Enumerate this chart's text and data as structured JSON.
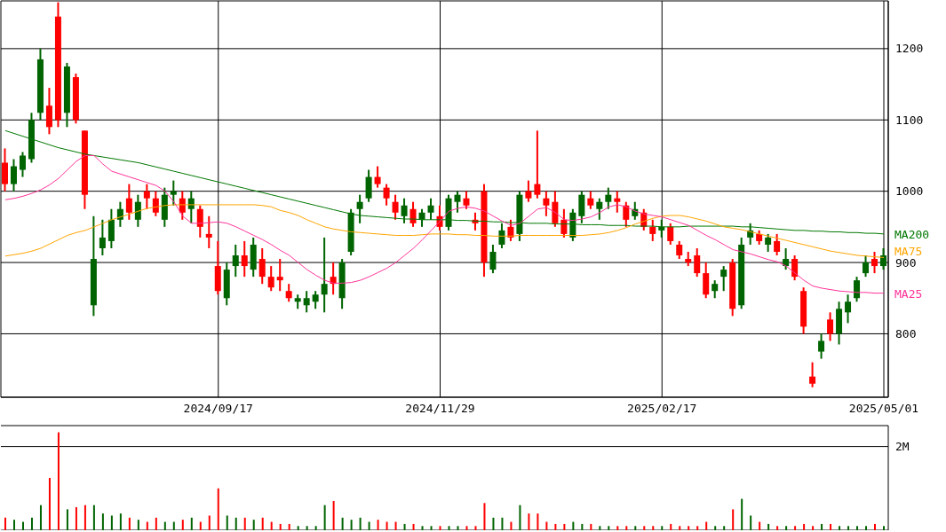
{
  "chart_data": [
    {
      "type": "candlestick",
      "categories": [
        null,
        null,
        null,
        null,
        null,
        null,
        null,
        null,
        null,
        null,
        null,
        null,
        null,
        null,
        null,
        null,
        null,
        null,
        null,
        null,
        null,
        null,
        null,
        null,
        "2024/09/17",
        null,
        null,
        null,
        null,
        null,
        null,
        null,
        null,
        null,
        null,
        null,
        null,
        null,
        null,
        null,
        null,
        null,
        null,
        null,
        null,
        null,
        null,
        null,
        null,
        "2024/11/29",
        null,
        null,
        null,
        null,
        null,
        null,
        null,
        null,
        null,
        null,
        null,
        null,
        null,
        null,
        null,
        null,
        null,
        null,
        null,
        null,
        null,
        null,
        null,
        null,
        "2025/02/17",
        null,
        null,
        null,
        null,
        null,
        null,
        null,
        null,
        null,
        null,
        null,
        null,
        null,
        null,
        null,
        null,
        null,
        null,
        null,
        null,
        null,
        null,
        null,
        null,
        "2025/05/01"
      ],
      "ohlc": [
        [
          1040,
          1060,
          1000,
          1010
        ],
        [
          1010,
          1045,
          1000,
          1035
        ],
        [
          1030,
          1055,
          1020,
          1050
        ],
        [
          1045,
          1110,
          1040,
          1100
        ],
        [
          1110,
          1200,
          1100,
          1185
        ],
        [
          1120,
          1145,
          1080,
          1090
        ],
        [
          1245,
          1265,
          1090,
          1100
        ],
        [
          1110,
          1180,
          1090,
          1175
        ],
        [
          1160,
          1165,
          1095,
          1100
        ],
        [
          1085,
          1085,
          975,
          995
        ],
        [
          840,
          965,
          825,
          905
        ],
        [
          920,
          960,
          910,
          935
        ],
        [
          930,
          975,
          920,
          960
        ],
        [
          960,
          985,
          950,
          975
        ],
        [
          990,
          1010,
          960,
          970
        ],
        [
          960,
          995,
          950,
          985
        ],
        [
          1000,
          1010,
          975,
          990
        ],
        [
          990,
          1000,
          965,
          970
        ],
        [
          960,
          1005,
          950,
          995
        ],
        [
          995,
          1015,
          980,
          1000
        ],
        [
          990,
          1000,
          960,
          970
        ],
        [
          975,
          1000,
          955,
          990
        ],
        [
          975,
          980,
          935,
          950
        ],
        [
          940,
          965,
          920,
          935
        ],
        [
          895,
          930,
          855,
          860
        ],
        [
          850,
          900,
          840,
          890
        ],
        [
          895,
          925,
          880,
          910
        ],
        [
          910,
          930,
          880,
          895
        ],
        [
          890,
          935,
          880,
          925
        ],
        [
          905,
          920,
          870,
          880
        ],
        [
          880,
          895,
          860,
          865
        ],
        [
          880,
          905,
          860,
          875
        ],
        [
          860,
          870,
          845,
          850
        ],
        [
          845,
          855,
          835,
          850
        ],
        [
          840,
          860,
          830,
          850
        ],
        [
          845,
          860,
          835,
          855
        ],
        [
          855,
          935,
          830,
          870
        ],
        [
          880,
          900,
          855,
          870
        ],
        [
          850,
          905,
          835,
          900
        ],
        [
          915,
          975,
          910,
          970
        ],
        [
          975,
          995,
          955,
          985
        ],
        [
          990,
          1030,
          985,
          1020
        ],
        [
          1020,
          1035,
          1005,
          1010
        ],
        [
          1005,
          1010,
          980,
          990
        ],
        [
          985,
          995,
          960,
          970
        ],
        [
          965,
          990,
          955,
          980
        ],
        [
          975,
          985,
          950,
          955
        ],
        [
          960,
          975,
          950,
          970
        ],
        [
          970,
          990,
          960,
          980
        ],
        [
          965,
          980,
          945,
          950
        ],
        [
          950,
          995,
          945,
          990
        ],
        [
          985,
          1000,
          970,
          995
        ],
        [
          990,
          1000,
          975,
          980
        ],
        [
          960,
          970,
          945,
          955
        ],
        [
          1000,
          1010,
          880,
          900
        ],
        [
          890,
          925,
          885,
          915
        ],
        [
          925,
          955,
          920,
          945
        ],
        [
          950,
          960,
          930,
          935
        ],
        [
          940,
          1000,
          930,
          995
        ],
        [
          1000,
          1015,
          985,
          990
        ],
        [
          1010,
          1085,
          990,
          995
        ],
        [
          990,
          1000,
          965,
          980
        ],
        [
          985,
          1000,
          950,
          955
        ],
        [
          960,
          975,
          935,
          940
        ],
        [
          935,
          975,
          930,
          970
        ],
        [
          965,
          1000,
          955,
          995
        ],
        [
          990,
          1000,
          975,
          980
        ],
        [
          975,
          990,
          960,
          985
        ],
        [
          985,
          1005,
          975,
          995
        ],
        [
          990,
          1000,
          970,
          985
        ],
        [
          980,
          985,
          950,
          960
        ],
        [
          965,
          985,
          960,
          975
        ],
        [
          970,
          975,
          945,
          950
        ],
        [
          950,
          960,
          930,
          940
        ],
        [
          945,
          960,
          935,
          950
        ],
        [
          950,
          955,
          925,
          930
        ],
        [
          925,
          930,
          905,
          910
        ],
        [
          905,
          915,
          895,
          900
        ],
        [
          910,
          920,
          880,
          885
        ],
        [
          885,
          900,
          850,
          855
        ],
        [
          860,
          875,
          850,
          870
        ],
        [
          880,
          895,
          860,
          890
        ],
        [
          900,
          905,
          825,
          835
        ],
        [
          840,
          935,
          835,
          925
        ],
        [
          935,
          955,
          925,
          945
        ],
        [
          940,
          945,
          925,
          930
        ],
        [
          925,
          940,
          915,
          935
        ],
        [
          930,
          940,
          910,
          915
        ],
        [
          895,
          920,
          890,
          905
        ],
        [
          905,
          910,
          875,
          880
        ],
        [
          860,
          865,
          800,
          810
        ],
        [
          740,
          760,
          725,
          730
        ],
        [
          775,
          800,
          765,
          790
        ],
        [
          820,
          830,
          790,
          800
        ],
        [
          800,
          845,
          785,
          835
        ],
        [
          830,
          855,
          815,
          845
        ],
        [
          850,
          880,
          845,
          875
        ],
        [
          885,
          910,
          880,
          900
        ],
        [
          905,
          915,
          885,
          895
        ],
        [
          895,
          920,
          890,
          910
        ]
      ],
      "colors": [
        "#ff0000",
        "#006400",
        "#006400",
        "#006400",
        "#006400",
        "#ff0000",
        "#ff0000",
        "#006400",
        "#ff0000",
        "#ff0000",
        "#006400",
        "#006400",
        "#006400",
        "#006400",
        "#ff0000",
        "#006400",
        "#ff0000",
        "#ff0000",
        "#006400",
        "#006400",
        "#ff0000",
        "#006400",
        "#ff0000",
        "#ff0000",
        "#ff0000",
        "#006400",
        "#006400",
        "#ff0000",
        "#006400",
        "#ff0000",
        "#ff0000",
        "#ff0000",
        "#ff0000",
        "#006400",
        "#006400",
        "#006400",
        "#006400",
        "#ff0000",
        "#006400",
        "#006400",
        "#006400",
        "#006400",
        "#ff0000",
        "#ff0000",
        "#ff0000",
        "#006400",
        "#ff0000",
        "#006400",
        "#006400",
        "#ff0000",
        "#006400",
        "#006400",
        "#ff0000",
        "#ff0000",
        "#ff0000",
        "#006400",
        "#006400",
        "#ff0000",
        "#006400",
        "#ff0000",
        "#ff0000",
        "#ff0000",
        "#ff0000",
        "#ff0000",
        "#006400",
        "#006400",
        "#ff0000",
        "#006400",
        "#006400",
        "#ff0000",
        "#ff0000",
        "#006400",
        "#ff0000",
        "#ff0000",
        "#006400",
        "#ff0000",
        "#ff0000",
        "#ff0000",
        "#ff0000",
        "#ff0000",
        "#006400",
        "#006400",
        "#ff0000",
        "#006400",
        "#006400",
        "#ff0000",
        "#006400",
        "#ff0000",
        "#006400",
        "#ff0000",
        "#ff0000",
        "#ff0000",
        "#006400",
        "#ff0000",
        "#006400",
        "#006400",
        "#006400",
        "#006400",
        "#ff0000",
        "#006400"
      ],
      "series": [
        {
          "type": "line",
          "name": "MA200",
          "color": "#007700",
          "values": [
            1085,
            1081,
            1077,
            1073,
            1069,
            1065,
            1061,
            1058,
            1055,
            1052,
            1050,
            1048,
            1046,
            1044,
            1042,
            1040,
            1037,
            1034,
            1031,
            1028,
            1025,
            1022,
            1019,
            1016,
            1013,
            1010,
            1007,
            1004,
            1001,
            998,
            995,
            992,
            989,
            986,
            983,
            980,
            977,
            974,
            971,
            968,
            966,
            965,
            964,
            963,
            962,
            961,
            961,
            960,
            960,
            960,
            960,
            959,
            959,
            958,
            958,
            957,
            957,
            956,
            956,
            955,
            955,
            955,
            954,
            954,
            954,
            953,
            953,
            953,
            952,
            952,
            952,
            951,
            951,
            951,
            950,
            950,
            950,
            951,
            951,
            951,
            951,
            951,
            951,
            950,
            950,
            949,
            948,
            947,
            946,
            945,
            945,
            944,
            944,
            943,
            943,
            942,
            942,
            941,
            941,
            940
          ]
        },
        {
          "type": "line",
          "name": "MA75",
          "color": "#ffa500",
          "values": [
            909,
            911,
            913,
            916,
            920,
            926,
            932,
            938,
            942,
            945,
            950,
            955,
            960,
            964,
            968,
            972,
            976,
            978,
            980,
            981,
            981,
            981,
            981,
            981,
            981,
            981,
            981,
            981,
            981,
            980,
            978,
            973,
            970,
            966,
            960,
            955,
            950,
            947,
            945,
            943,
            942,
            941,
            940,
            939,
            938,
            938,
            938,
            939,
            940,
            940,
            940,
            939,
            939,
            938,
            938,
            937,
            937,
            937,
            938,
            938,
            938,
            938,
            938,
            938,
            938,
            938,
            939,
            940,
            942,
            945,
            949,
            954,
            958,
            962,
            965,
            966,
            966,
            964,
            961,
            958,
            954,
            950,
            948,
            946,
            943,
            940,
            937,
            934,
            931,
            928,
            925,
            922,
            919,
            916,
            914,
            912,
            910,
            909,
            908,
            907
          ]
        },
        {
          "type": "line",
          "name": "MA25",
          "color": "#ff3399",
          "values": [
            988,
            990,
            993,
            997,
            1002,
            1009,
            1018,
            1030,
            1042,
            1050,
            1050,
            1038,
            1028,
            1024,
            1020,
            1016,
            1012,
            1008,
            1000,
            985,
            965,
            955,
            955,
            956,
            957,
            955,
            950,
            944,
            938,
            932,
            925,
            917,
            910,
            900,
            890,
            882,
            875,
            871,
            871,
            872,
            875,
            880,
            886,
            892,
            900,
            910,
            920,
            932,
            945,
            958,
            972,
            976,
            978,
            976,
            972,
            965,
            958,
            952,
            955,
            965,
            975,
            977,
            970,
            960,
            959,
            961,
            964,
            970,
            978,
            981,
            978,
            972,
            968,
            966,
            964,
            960,
            956,
            952,
            945,
            938,
            932,
            925,
            918,
            915,
            912,
            908,
            904,
            901,
            895,
            885,
            875,
            867,
            864,
            862,
            860,
            859,
            858,
            858,
            857,
            857
          ]
        }
      ],
      "ylim": [
        711,
        1267
      ],
      "yticks": [
        800,
        900,
        1000,
        1100,
        1200
      ],
      "grid": true
    },
    {
      "type": "bar",
      "categories": [
        null,
        null,
        null,
        null,
        null,
        null,
        null,
        null,
        null,
        null,
        null,
        null,
        null,
        null,
        null,
        null,
        null,
        null,
        null,
        null,
        null,
        null,
        null,
        null,
        "2024/09/17",
        null,
        null,
        null,
        null,
        null,
        null,
        null,
        null,
        null,
        null,
        null,
        null,
        null,
        null,
        null,
        null,
        null,
        null,
        null,
        null,
        null,
        null,
        null,
        null,
        "2024/11/29",
        null,
        null,
        null,
        null,
        null,
        null,
        null,
        null,
        null,
        null,
        null,
        null,
        null,
        null,
        null,
        null,
        null,
        null,
        null,
        null,
        null,
        null,
        null,
        null,
        "2025/02/17",
        null,
        null,
        null,
        null,
        null,
        null,
        null,
        null,
        null,
        null,
        null,
        null,
        null,
        null,
        null,
        null,
        null,
        null,
        null,
        null,
        null,
        null,
        null,
        null,
        "2025/05/01"
      ],
      "values": [
        0.3,
        0.25,
        0.2,
        0.3,
        0.6,
        1.25,
        2.34,
        0.5,
        0.55,
        0.6,
        0.6,
        0.4,
        0.35,
        0.4,
        0.3,
        0.25,
        0.2,
        0.3,
        0.2,
        0.2,
        0.25,
        0.3,
        0.2,
        0.35,
        1.0,
        0.35,
        0.3,
        0.3,
        0.25,
        0.3,
        0.2,
        0.15,
        0.15,
        0.1,
        0.1,
        0.1,
        0.6,
        0.7,
        0.3,
        0.25,
        0.3,
        0.2,
        0.25,
        0.2,
        0.2,
        0.15,
        0.15,
        0.1,
        0.1,
        0.1,
        0.1,
        0.1,
        0.1,
        0.1,
        0.65,
        0.3,
        0.3,
        0.2,
        0.6,
        0.4,
        0.4,
        0.2,
        0.15,
        0.15,
        0.2,
        0.15,
        0.15,
        0.1,
        0.1,
        0.1,
        0.1,
        0.1,
        0.1,
        0.1,
        0.1,
        0.15,
        0.1,
        0.1,
        0.1,
        0.2,
        0.1,
        0.1,
        0.5,
        0.75,
        0.35,
        0.2,
        0.15,
        0.1,
        0.1,
        0.1,
        0.15,
        0.1,
        0.15,
        0.15,
        0.1,
        0.1,
        0.1,
        0.1,
        0.15,
        0.1
      ],
      "colors": [
        "#ff0000",
        "#006400",
        "#006400",
        "#006400",
        "#006400",
        "#ff0000",
        "#ff0000",
        "#006400",
        "#ff0000",
        "#ff0000",
        "#006400",
        "#006400",
        "#006400",
        "#006400",
        "#ff0000",
        "#006400",
        "#ff0000",
        "#ff0000",
        "#006400",
        "#006400",
        "#ff0000",
        "#006400",
        "#ff0000",
        "#ff0000",
        "#ff0000",
        "#006400",
        "#006400",
        "#ff0000",
        "#006400",
        "#ff0000",
        "#ff0000",
        "#ff0000",
        "#ff0000",
        "#006400",
        "#006400",
        "#006400",
        "#006400",
        "#ff0000",
        "#006400",
        "#006400",
        "#006400",
        "#006400",
        "#ff0000",
        "#ff0000",
        "#ff0000",
        "#006400",
        "#ff0000",
        "#006400",
        "#006400",
        "#ff0000",
        "#006400",
        "#006400",
        "#ff0000",
        "#ff0000",
        "#ff0000",
        "#006400",
        "#006400",
        "#ff0000",
        "#006400",
        "#ff0000",
        "#ff0000",
        "#ff0000",
        "#ff0000",
        "#ff0000",
        "#006400",
        "#006400",
        "#ff0000",
        "#006400",
        "#006400",
        "#ff0000",
        "#ff0000",
        "#006400",
        "#ff0000",
        "#ff0000",
        "#006400",
        "#ff0000",
        "#ff0000",
        "#ff0000",
        "#ff0000",
        "#ff0000",
        "#006400",
        "#006400",
        "#ff0000",
        "#006400",
        "#006400",
        "#ff0000",
        "#006400",
        "#ff0000",
        "#006400",
        "#ff0000",
        "#ff0000",
        "#ff0000",
        "#006400",
        "#ff0000",
        "#006400",
        "#006400",
        "#006400",
        "#006400",
        "#ff0000",
        "#006400"
      ],
      "ylim": [
        0,
        2.5
      ],
      "yticks": [
        {
          "value": 2,
          "label": "2M"
        }
      ],
      "grid": "y",
      "tick_labels": "y"
    }
  ]
}
